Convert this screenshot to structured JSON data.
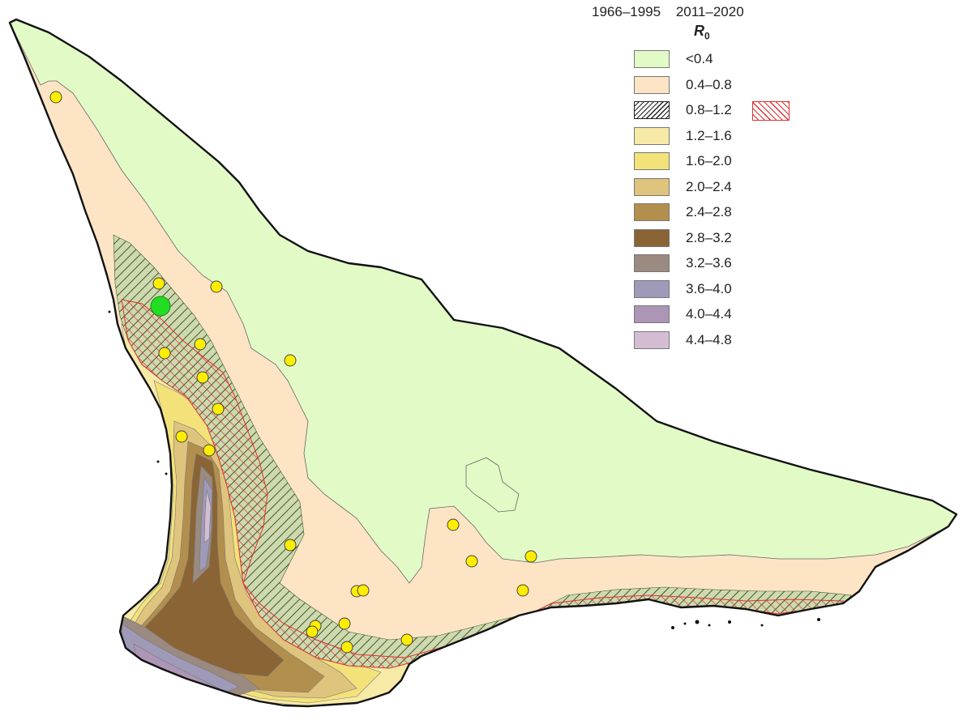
{
  "legend": {
    "period_1": "1966–1995",
    "period_2": "2011–2020",
    "variable": "R",
    "variable_sub": "0",
    "classes": [
      {
        "label": "<0.4",
        "color": "#e2fbc6"
      },
      {
        "label": "0.4–0.8",
        "color": "#fde4c4"
      },
      {
        "label": "0.8–1.2",
        "color": "hatch-black",
        "hatched_2011_2020": true
      },
      {
        "label": "1.2–1.6",
        "color": "#f7eaa7"
      },
      {
        "label": "1.6–2.0",
        "color": "#f3e27a"
      },
      {
        "label": "2.0–2.4",
        "color": "#dfc47e"
      },
      {
        "label": "2.4–2.8",
        "color": "#b38f4e"
      },
      {
        "label": "2.8–3.2",
        "color": "#8a6434"
      },
      {
        "label": "3.2–3.6",
        "color": "#9b8a80"
      },
      {
        "label": "3.6–4.0",
        "color": "#9e9ab8"
      },
      {
        "label": "4.0–4.4",
        "color": "#ad95b5"
      },
      {
        "label": "4.4–4.8",
        "color": "#d4bdd3"
      }
    ]
  },
  "colors": {
    "hatch_1966_1995": "#333333",
    "hatch_2011_2020": "#e03030",
    "site_marker": "#ffee00",
    "highlight_site": "#22dd22"
  }
}
